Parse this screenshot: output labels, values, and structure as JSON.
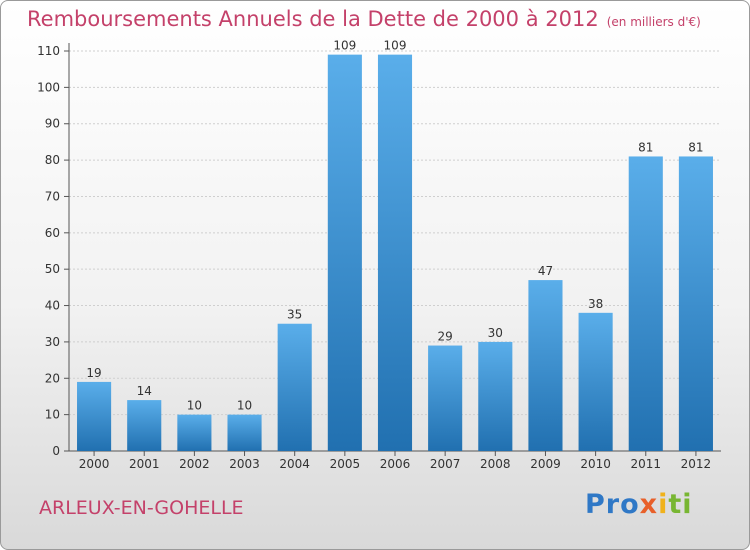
{
  "title": "Remboursements Annuels de la Dette de 2000 à 2012",
  "subtitle": "(en milliers d'€)",
  "commune": "ARLEUX-EN-GOHELLE",
  "logo": [
    "Pro",
    "x",
    "i",
    "ti"
  ],
  "colors": {
    "title": "#c4416a",
    "bar_top": "#5aaeea",
    "bar_bottom": "#2170b0",
    "grid": "#cfcfcf"
  },
  "chart_data": {
    "type": "bar",
    "categories": [
      "2000",
      "2001",
      "2002",
      "2003",
      "2004",
      "2005",
      "2006",
      "2007",
      "2008",
      "2009",
      "2010",
      "2011",
      "2012"
    ],
    "values": [
      19,
      14,
      10,
      10,
      35,
      109,
      109,
      29,
      30,
      47,
      38,
      81,
      81
    ],
    "ylim": [
      0,
      110
    ],
    "yticks": [
      0,
      10,
      20,
      30,
      40,
      50,
      60,
      70,
      80,
      90,
      100,
      110
    ],
    "grid": true
  }
}
